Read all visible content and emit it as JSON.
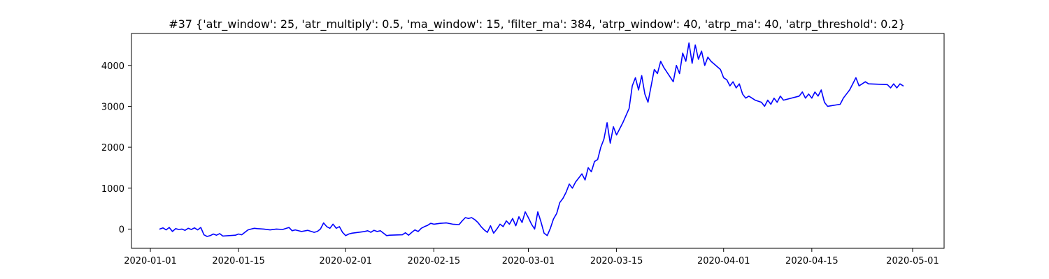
{
  "chart_data": {
    "type": "line",
    "title": "#37 {'atr_window': 25, 'atr_multiply': 0.5, 'ma_window': 15, 'filter_ma': 384, 'atrp_window': 40, 'atrp_ma': 40, 'atrp_threshold': 0.2}",
    "xlabel": "",
    "ylabel": "",
    "x_type": "date",
    "xlim": [
      "2019-12-29",
      "2020-05-06"
    ],
    "ylim": [
      -470,
      4780
    ],
    "x_ticks": [
      {
        "value": "2020-01-01",
        "label": "2020-01-01"
      },
      {
        "value": "2020-01-15",
        "label": "2020-01-15"
      },
      {
        "value": "2020-02-01",
        "label": "2020-02-01"
      },
      {
        "value": "2020-02-15",
        "label": "2020-02-15"
      },
      {
        "value": "2020-03-01",
        "label": "2020-03-01"
      },
      {
        "value": "2020-03-15",
        "label": "2020-03-15"
      },
      {
        "value": "2020-04-01",
        "label": "2020-04-01"
      },
      {
        "value": "2020-04-15",
        "label": "2020-04-15"
      },
      {
        "value": "2020-05-01",
        "label": "2020-05-01"
      }
    ],
    "y_ticks": [
      {
        "value": 0,
        "label": "0"
      },
      {
        "value": 1000,
        "label": "1000"
      },
      {
        "value": 2000,
        "label": "2000"
      },
      {
        "value": 3000,
        "label": "3000"
      },
      {
        "value": 4000,
        "label": "4000"
      }
    ],
    "grid": false,
    "legend": "none",
    "series": [
      {
        "color": "#0000ff",
        "points": [
          [
            "2020-01-02T12:00",
            0
          ],
          [
            "2020-01-03T00:00",
            30
          ],
          [
            "2020-01-03T12:00",
            -20
          ],
          [
            "2020-01-04T00:00",
            40
          ],
          [
            "2020-01-04T12:00",
            -60
          ],
          [
            "2020-01-05T00:00",
            10
          ],
          [
            "2020-01-05T12:00",
            -10
          ],
          [
            "2020-01-06T00:00",
            0
          ],
          [
            "2020-01-06T12:00",
            -30
          ],
          [
            "2020-01-07T00:00",
            20
          ],
          [
            "2020-01-07T12:00",
            -10
          ],
          [
            "2020-01-08T00:00",
            30
          ],
          [
            "2020-01-08T12:00",
            -20
          ],
          [
            "2020-01-09T00:00",
            40
          ],
          [
            "2020-01-09T12:00",
            -140
          ],
          [
            "2020-01-10T00:00",
            -180
          ],
          [
            "2020-01-10T12:00",
            -160
          ],
          [
            "2020-01-11T00:00",
            -120
          ],
          [
            "2020-01-11T12:00",
            -150
          ],
          [
            "2020-01-12T00:00",
            -110
          ],
          [
            "2020-01-12T12:00",
            -170
          ],
          [
            "2020-01-14T12:00",
            -150
          ],
          [
            "2020-01-15T00:00",
            -120
          ],
          [
            "2020-01-15T12:00",
            -140
          ],
          [
            "2020-01-16T00:00",
            -80
          ],
          [
            "2020-01-16T12:00",
            -20
          ],
          [
            "2020-01-17T00:00",
            0
          ],
          [
            "2020-01-17T12:00",
            20
          ],
          [
            "2020-01-18T00:00",
            10
          ],
          [
            "2020-01-19T00:00",
            0
          ],
          [
            "2020-01-20T00:00",
            -20
          ],
          [
            "2020-01-21T00:00",
            0
          ],
          [
            "2020-01-22T00:00",
            -10
          ],
          [
            "2020-01-23T00:00",
            40
          ],
          [
            "2020-01-23T12:00",
            -40
          ],
          [
            "2020-01-24T00:00",
            -20
          ],
          [
            "2020-01-25T00:00",
            -60
          ],
          [
            "2020-01-26T00:00",
            -30
          ],
          [
            "2020-01-27T00:00",
            -80
          ],
          [
            "2020-01-27T12:00",
            -60
          ],
          [
            "2020-01-28T00:00",
            0
          ],
          [
            "2020-01-28T12:00",
            150
          ],
          [
            "2020-01-29T00:00",
            60
          ],
          [
            "2020-01-29T12:00",
            20
          ],
          [
            "2020-01-30T00:00",
            120
          ],
          [
            "2020-01-30T12:00",
            20
          ],
          [
            "2020-01-31T00:00",
            60
          ],
          [
            "2020-01-31T12:00",
            -80
          ],
          [
            "2020-02-01T00:00",
            -160
          ],
          [
            "2020-02-01T12:00",
            -120
          ],
          [
            "2020-02-02T00:00",
            -100
          ],
          [
            "2020-02-04T00:00",
            -60
          ],
          [
            "2020-02-04T12:00",
            -40
          ],
          [
            "2020-02-05T00:00",
            -80
          ],
          [
            "2020-02-05T12:00",
            -30
          ],
          [
            "2020-02-06T00:00",
            -60
          ],
          [
            "2020-02-06T12:00",
            -40
          ],
          [
            "2020-02-07T00:00",
            -100
          ],
          [
            "2020-02-07T12:00",
            -160
          ],
          [
            "2020-02-08T00:00",
            -150
          ],
          [
            "2020-02-10T00:00",
            -140
          ],
          [
            "2020-02-10T12:00",
            -90
          ],
          [
            "2020-02-11T00:00",
            -150
          ],
          [
            "2020-02-11T12:00",
            -80
          ],
          [
            "2020-02-12T00:00",
            -20
          ],
          [
            "2020-02-12T12:00",
            -60
          ],
          [
            "2020-02-13T00:00",
            20
          ],
          [
            "2020-02-13T12:00",
            60
          ],
          [
            "2020-02-14T00:00",
            90
          ],
          [
            "2020-02-14T12:00",
            140
          ],
          [
            "2020-02-15T00:00",
            120
          ],
          [
            "2020-02-16T00:00",
            140
          ],
          [
            "2020-02-17T00:00",
            150
          ],
          [
            "2020-02-18T00:00",
            120
          ],
          [
            "2020-02-19T00:00",
            110
          ],
          [
            "2020-02-19T12:00",
            200
          ],
          [
            "2020-02-20T00:00",
            280
          ],
          [
            "2020-02-20T12:00",
            260
          ],
          [
            "2020-02-21T00:00",
            280
          ],
          [
            "2020-02-21T12:00",
            230
          ],
          [
            "2020-02-22T00:00",
            160
          ],
          [
            "2020-02-22T12:00",
            60
          ],
          [
            "2020-02-23T00:00",
            -20
          ],
          [
            "2020-02-23T12:00",
            -80
          ],
          [
            "2020-02-24T00:00",
            80
          ],
          [
            "2020-02-24T12:00",
            -100
          ],
          [
            "2020-02-25T00:00",
            0
          ],
          [
            "2020-02-25T12:00",
            120
          ],
          [
            "2020-02-26T00:00",
            60
          ],
          [
            "2020-02-26T12:00",
            200
          ],
          [
            "2020-02-27T00:00",
            120
          ],
          [
            "2020-02-27T12:00",
            260
          ],
          [
            "2020-02-28T00:00",
            80
          ],
          [
            "2020-02-28T12:00",
            300
          ],
          [
            "2020-02-29T00:00",
            160
          ],
          [
            "2020-02-29T12:00",
            420
          ],
          [
            "2020-03-01T00:00",
            280
          ],
          [
            "2020-03-01T12:00",
            120
          ],
          [
            "2020-03-02T00:00",
            0
          ],
          [
            "2020-03-02T12:00",
            420
          ],
          [
            "2020-03-03T00:00",
            180
          ],
          [
            "2020-03-03T12:00",
            -100
          ],
          [
            "2020-03-04T00:00",
            -160
          ],
          [
            "2020-03-04T12:00",
            20
          ],
          [
            "2020-03-05T00:00",
            250
          ],
          [
            "2020-03-05T12:00",
            380
          ],
          [
            "2020-03-06T00:00",
            650
          ],
          [
            "2020-03-06T12:00",
            750
          ],
          [
            "2020-03-07T00:00",
            900
          ],
          [
            "2020-03-07T12:00",
            1100
          ],
          [
            "2020-03-08T00:00",
            1000
          ],
          [
            "2020-03-08T12:00",
            1150
          ],
          [
            "2020-03-09T00:00",
            1250
          ],
          [
            "2020-03-09T12:00",
            1350
          ],
          [
            "2020-03-10T00:00",
            1200
          ],
          [
            "2020-03-10T12:00",
            1500
          ],
          [
            "2020-03-11T00:00",
            1400
          ],
          [
            "2020-03-11T12:00",
            1650
          ],
          [
            "2020-03-12T00:00",
            1700
          ],
          [
            "2020-03-12T12:00",
            2000
          ],
          [
            "2020-03-13T00:00",
            2200
          ],
          [
            "2020-03-13T12:00",
            2600
          ],
          [
            "2020-03-14T00:00",
            2100
          ],
          [
            "2020-03-14T12:00",
            2500
          ],
          [
            "2020-03-15T00:00",
            2300
          ],
          [
            "2020-03-16T00:00",
            2600
          ],
          [
            "2020-03-17T00:00",
            2950
          ],
          [
            "2020-03-17T12:00",
            3500
          ],
          [
            "2020-03-18T00:00",
            3700
          ],
          [
            "2020-03-18T12:00",
            3400
          ],
          [
            "2020-03-19T00:00",
            3750
          ],
          [
            "2020-03-19T12:00",
            3300
          ],
          [
            "2020-03-20T00:00",
            3100
          ],
          [
            "2020-03-20T12:00",
            3500
          ],
          [
            "2020-03-21T00:00",
            3900
          ],
          [
            "2020-03-21T12:00",
            3800
          ],
          [
            "2020-03-22T00:00",
            4100
          ],
          [
            "2020-03-22T12:00",
            3950
          ],
          [
            "2020-03-24T00:00",
            3600
          ],
          [
            "2020-03-24T12:00",
            4000
          ],
          [
            "2020-03-25T00:00",
            3800
          ],
          [
            "2020-03-25T12:00",
            4300
          ],
          [
            "2020-03-26T00:00",
            4100
          ],
          [
            "2020-03-26T12:00",
            4550
          ],
          [
            "2020-03-27T00:00",
            4050
          ],
          [
            "2020-03-27T12:00",
            4500
          ],
          [
            "2020-03-28T00:00",
            4150
          ],
          [
            "2020-03-28T12:00",
            4350
          ],
          [
            "2020-03-29T00:00",
            4000
          ],
          [
            "2020-03-29T12:00",
            4200
          ],
          [
            "2020-03-30T00:00",
            4100
          ],
          [
            "2020-03-31T12:00",
            3900
          ],
          [
            "2020-04-01T00:00",
            3700
          ],
          [
            "2020-04-01T12:00",
            3650
          ],
          [
            "2020-04-02T00:00",
            3500
          ],
          [
            "2020-04-02T12:00",
            3600
          ],
          [
            "2020-04-03T00:00",
            3450
          ],
          [
            "2020-04-03T12:00",
            3550
          ],
          [
            "2020-04-04T00:00",
            3300
          ],
          [
            "2020-04-04T12:00",
            3200
          ],
          [
            "2020-04-05T00:00",
            3250
          ],
          [
            "2020-04-06T00:00",
            3150
          ],
          [
            "2020-04-07T00:00",
            3100
          ],
          [
            "2020-04-07T12:00",
            3000
          ],
          [
            "2020-04-08T00:00",
            3150
          ],
          [
            "2020-04-08T12:00",
            3050
          ],
          [
            "2020-04-09T00:00",
            3200
          ],
          [
            "2020-04-09T12:00",
            3100
          ],
          [
            "2020-04-10T00:00",
            3250
          ],
          [
            "2020-04-10T12:00",
            3150
          ],
          [
            "2020-04-13T00:00",
            3250
          ],
          [
            "2020-04-13T12:00",
            3350
          ],
          [
            "2020-04-14T00:00",
            3200
          ],
          [
            "2020-04-14T12:00",
            3300
          ],
          [
            "2020-04-15T00:00",
            3200
          ],
          [
            "2020-04-15T12:00",
            3350
          ],
          [
            "2020-04-16T00:00",
            3250
          ],
          [
            "2020-04-16T12:00",
            3400
          ],
          [
            "2020-04-17T00:00",
            3100
          ],
          [
            "2020-04-17T12:00",
            3000
          ],
          [
            "2020-04-19T12:00",
            3050
          ],
          [
            "2020-04-20T00:00",
            3200
          ],
          [
            "2020-04-20T12:00",
            3300
          ],
          [
            "2020-04-21T00:00",
            3400
          ],
          [
            "2020-04-21T12:00",
            3550
          ],
          [
            "2020-04-22T00:00",
            3700
          ],
          [
            "2020-04-22T12:00",
            3500
          ],
          [
            "2020-04-23T00:00",
            3550
          ],
          [
            "2020-04-23T12:00",
            3600
          ],
          [
            "2020-04-24T00:00",
            3550
          ],
          [
            "2020-04-27T00:00",
            3530
          ],
          [
            "2020-04-27T12:00",
            3450
          ],
          [
            "2020-04-28T00:00",
            3550
          ],
          [
            "2020-04-28T12:00",
            3450
          ],
          [
            "2020-04-29T00:00",
            3550
          ],
          [
            "2020-04-29T12:00",
            3500
          ]
        ]
      }
    ]
  }
}
